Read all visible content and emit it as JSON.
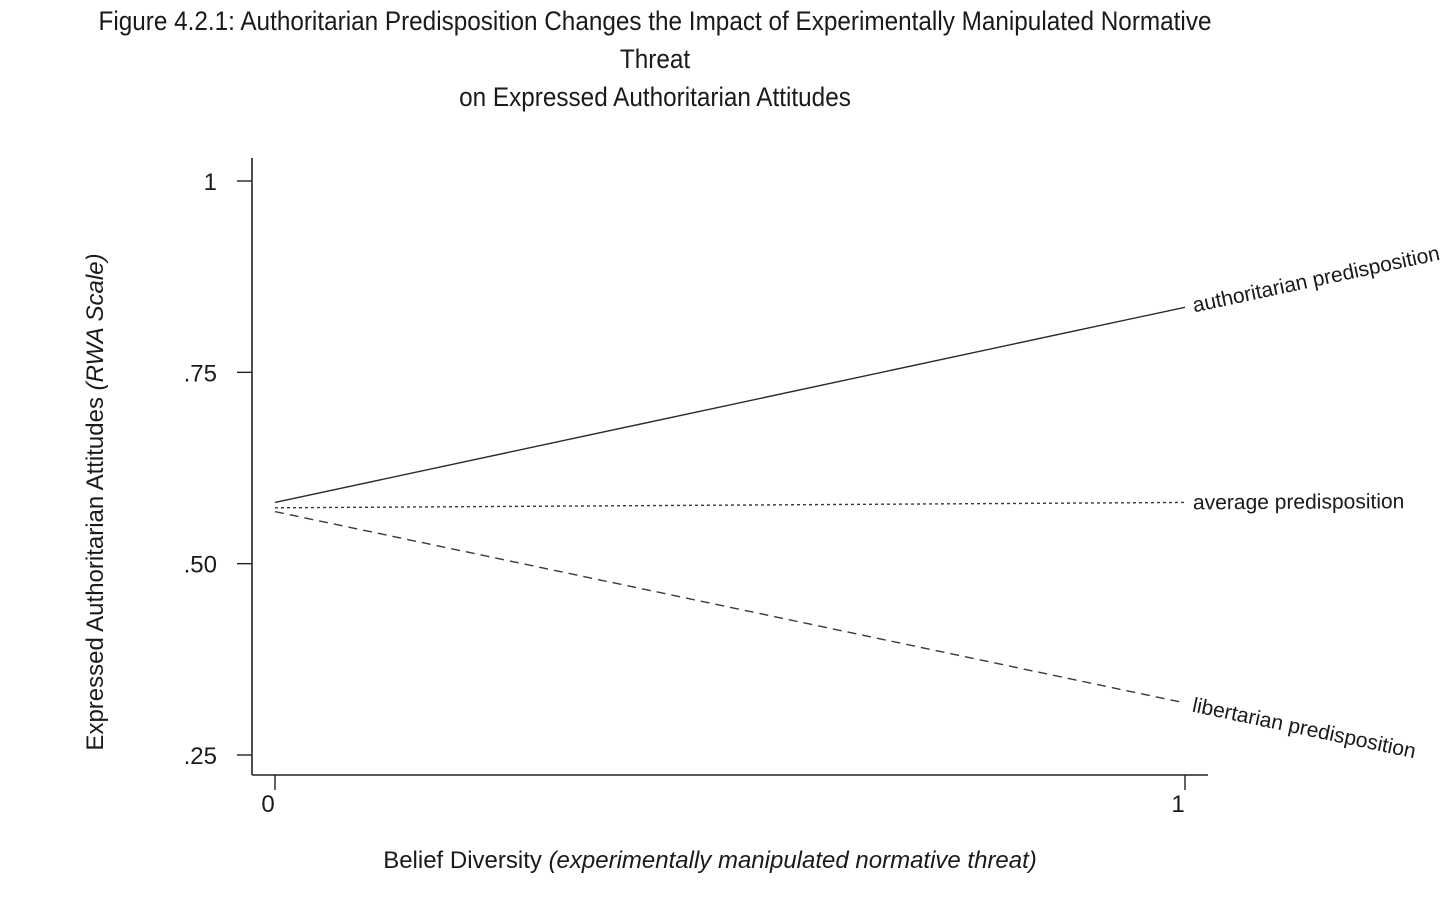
{
  "figure": {
    "title_line1": "Figure 4.2.1: Authoritarian Predisposition Changes the Impact of Experimentally Manipulated Normative Threat",
    "title_line2": "on Expressed Authoritarian Attitudes"
  },
  "chart_data": {
    "type": "line",
    "title": "Figure 4.2.1: Authoritarian Predisposition Changes the Impact of Experimentally Manipulated Normative Threat on Expressed Authoritarian Attitudes",
    "xlabel_main": "Belief Diversity ",
    "xlabel_italic": "(experimentally manipulated normative threat)",
    "ylabel_main": "Expressed Authoritarian Attitudes ",
    "ylabel_italic": "(RWA Scale)",
    "x": [
      0,
      1
    ],
    "xlim": [
      0,
      1
    ],
    "ylim": [
      0.25,
      1
    ],
    "x_ticks": [
      {
        "value": 0,
        "label": "0"
      },
      {
        "value": 1,
        "label": "1"
      }
    ],
    "y_ticks": [
      {
        "value": 0.25,
        "label": ".25"
      },
      {
        "value": 0.5,
        "label": ".50"
      },
      {
        "value": 0.75,
        "label": ".75"
      },
      {
        "value": 1,
        "label": "1"
      }
    ],
    "grid": false,
    "legend": "inline labels at line ends",
    "series": [
      {
        "name": "authoritarian predisposition",
        "values": [
          0.58,
          0.835
        ],
        "style": "solid",
        "color": "#2b2b2b"
      },
      {
        "name": "average predisposition",
        "values": [
          0.573,
          0.58
        ],
        "style": "dotted",
        "color": "#3a3a3a"
      },
      {
        "name": "libertarian predisposition",
        "values": [
          0.568,
          0.318
        ],
        "style": "dashed",
        "color": "#3a3a3a"
      }
    ]
  }
}
